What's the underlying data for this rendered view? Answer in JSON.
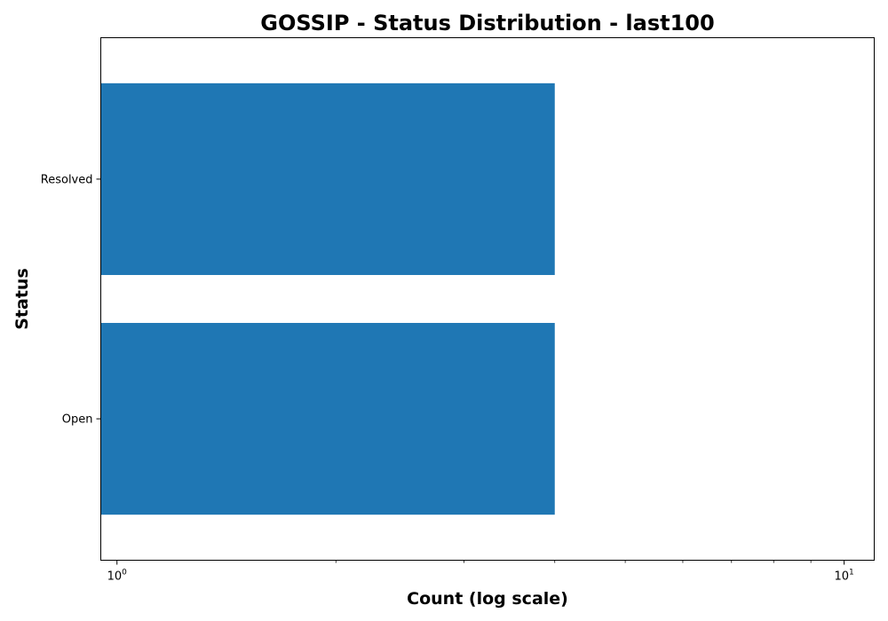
{
  "chart_data": {
    "type": "bar",
    "orientation": "horizontal",
    "title": "GOSSIP - Status Distribution - last100",
    "xlabel": "Count (log scale)",
    "ylabel": "Status",
    "xscale": "log",
    "xlim": [
      0.95,
      11.0
    ],
    "categories": [
      "Open",
      "Resolved"
    ],
    "values": [
      4,
      4
    ],
    "bar_color": "#1f77b4",
    "x_ticks": [
      {
        "value": 1,
        "base": "10",
        "exp": "0"
      },
      {
        "value": 10,
        "base": "10",
        "exp": "1"
      }
    ],
    "grid": false,
    "legend": "none"
  }
}
